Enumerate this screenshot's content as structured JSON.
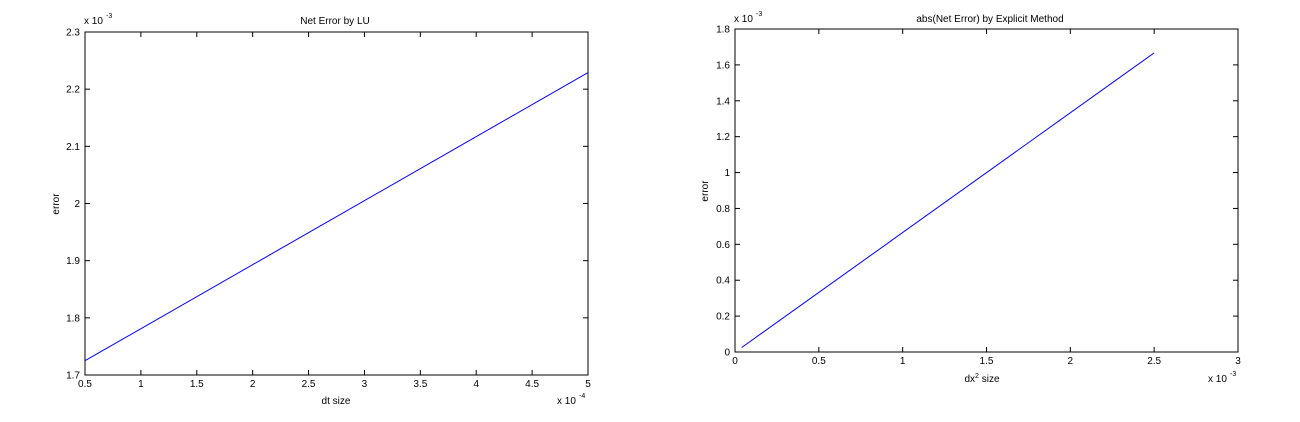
{
  "chart_data": [
    {
      "type": "line",
      "title": "Net Error by LU",
      "xlabel": "dt size",
      "ylabel": "error",
      "x_exponent_label": "x 10",
      "x_exponent": "-4",
      "y_exponent_label": "x 10",
      "y_exponent": "-3",
      "xlim": [
        0.5,
        5
      ],
      "ylim": [
        1.7,
        2.3
      ],
      "xticks": [
        0.5,
        1,
        1.5,
        2,
        2.5,
        3,
        3.5,
        4,
        4.5,
        5
      ],
      "xtick_labels": [
        "0.5",
        "1",
        "1.5",
        "2",
        "2.5",
        "3",
        "3.5",
        "4",
        "4.5",
        "5"
      ],
      "yticks": [
        1.7,
        1.8,
        1.9,
        2.0,
        2.1,
        2.2,
        2.3
      ],
      "ytick_labels": [
        "1.7",
        "1.8",
        "1.9",
        "2",
        "2.1",
        "2.2",
        "2.3"
      ],
      "grid": false,
      "series": [
        {
          "color": "#0000ff",
          "x": [
            0.5,
            5
          ],
          "y": [
            1.725,
            2.229
          ]
        }
      ]
    },
    {
      "type": "line",
      "title": "abs(Net Error) by Explicit Method",
      "xlabel_main": "dx",
      "xlabel_sup": "2",
      "xlabel_rest": " size",
      "ylabel": "error",
      "x_exponent_label": "x 10",
      "x_exponent": "-3",
      "y_exponent_label": "x 10",
      "y_exponent": "-3",
      "xlim": [
        0,
        3
      ],
      "ylim": [
        0,
        1.8
      ],
      "xticks": [
        0,
        0.5,
        1,
        1.5,
        2,
        2.5,
        3
      ],
      "xtick_labels": [
        "0",
        "0.5",
        "1",
        "1.5",
        "2",
        "2.5",
        "3"
      ],
      "yticks": [
        0,
        0.2,
        0.4,
        0.6,
        0.8,
        1.0,
        1.2,
        1.4,
        1.6,
        1.8
      ],
      "ytick_labels": [
        "0",
        "0.2",
        "0.4",
        "0.6",
        "0.8",
        "1",
        "1.2",
        "1.4",
        "1.6",
        "1.8"
      ],
      "grid": false,
      "series": [
        {
          "color": "#0000ff",
          "x": [
            0.04,
            2.5
          ],
          "y": [
            0.025,
            1.667
          ]
        }
      ]
    }
  ]
}
